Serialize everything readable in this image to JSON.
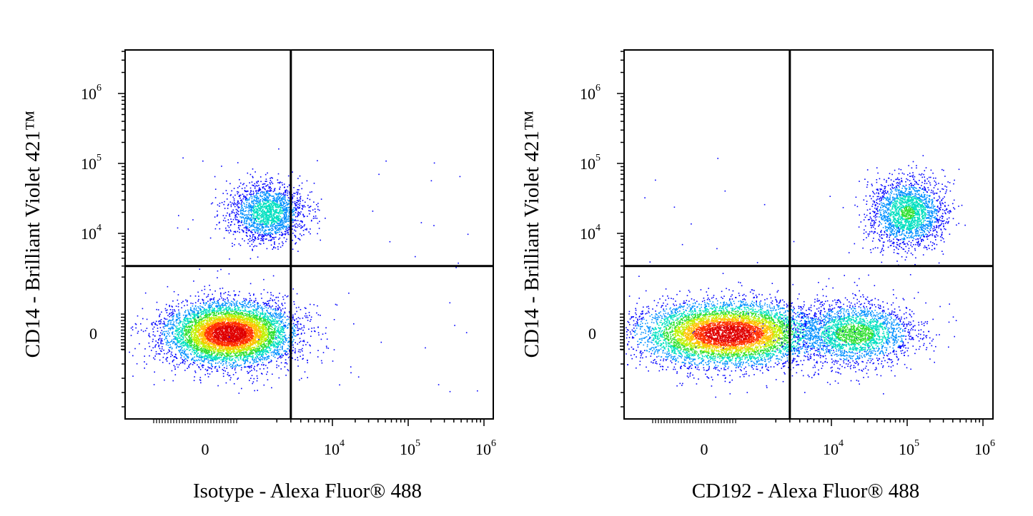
{
  "chart_data": [
    {
      "type": "scatter",
      "subtype": "flow-cytometry-pseudocolor-density",
      "xlabel": "Isotype - Alexa Fluor® 488",
      "ylabel": "CD14 - Brilliant Violet 421™",
      "x_scale": "biexponential",
      "y_scale": "biexponential",
      "x_ticks": [
        {
          "label": "0",
          "value": 0
        },
        {
          "label": "10",
          "exp": "4",
          "value": 10000
        },
        {
          "label": "10",
          "exp": "5",
          "value": 100000
        },
        {
          "label": "10",
          "exp": "6",
          "value": 1000000
        }
      ],
      "y_ticks": [
        {
          "label": "0",
          "value": 0
        },
        {
          "label": "10",
          "exp": "4",
          "value": 10000
        },
        {
          "label": "10",
          "exp": "5",
          "value": 100000
        },
        {
          "label": "10",
          "exp": "6",
          "value": 1000000
        }
      ],
      "quadrant_gate": {
        "x": 3000,
        "y": 3000
      },
      "populations": [
        {
          "name": "CD14- / isotype-",
          "x_center": 500,
          "y_center": 0,
          "relative_density": 1.0,
          "quadrant": "lower-left"
        },
        {
          "name": "CD14+ / isotype-",
          "x_center": 1500,
          "y_center": 20000,
          "relative_density": 0.35,
          "quadrant": "upper-left"
        }
      ],
      "grid": false,
      "legend": "none"
    },
    {
      "type": "scatter",
      "subtype": "flow-cytometry-pseudocolor-density",
      "xlabel": "CD192 - Alexa Fluor® 488",
      "ylabel": "CD14 - Brilliant Violet 421™",
      "x_scale": "biexponential",
      "y_scale": "biexponential",
      "x_ticks": [
        {
          "label": "0",
          "value": 0
        },
        {
          "label": "10",
          "exp": "4",
          "value": 10000
        },
        {
          "label": "10",
          "exp": "5",
          "value": 100000
        },
        {
          "label": "10",
          "exp": "6",
          "value": 1000000
        }
      ],
      "y_ticks": [
        {
          "label": "0",
          "value": 0
        },
        {
          "label": "10",
          "exp": "4",
          "value": 10000
        },
        {
          "label": "10",
          "exp": "5",
          "value": 100000
        },
        {
          "label": "10",
          "exp": "6",
          "value": 1000000
        }
      ],
      "quadrant_gate": {
        "x": 3000,
        "y": 3000
      },
      "populations": [
        {
          "name": "CD14- / CD192-",
          "x_center": 500,
          "y_center": 0,
          "relative_density": 1.0,
          "quadrant": "lower-left"
        },
        {
          "name": "CD14- / CD192+",
          "x_center": 20000,
          "y_center": 0,
          "relative_density": 0.45,
          "quadrant": "lower-right"
        },
        {
          "name": "CD14+ / CD192+",
          "x_center": 100000,
          "y_center": 20000,
          "relative_density": 0.4,
          "quadrant": "upper-right"
        }
      ],
      "grid": false,
      "legend": "none"
    }
  ],
  "colormap": [
    "#0000ff",
    "#0090ff",
    "#00e0c0",
    "#30e030",
    "#c0f000",
    "#ffc000",
    "#ff3000",
    "#e00000"
  ]
}
